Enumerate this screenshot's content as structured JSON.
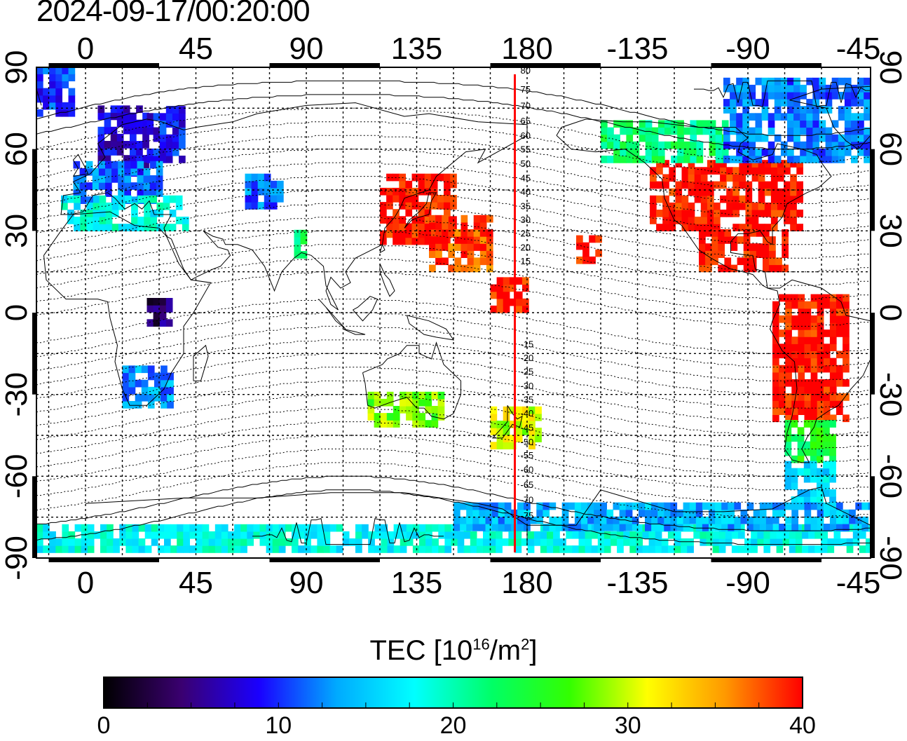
{
  "title": "2024-09-17/00:20:00",
  "map": {
    "lon_ticks": [
      "0",
      "45",
      "90",
      "135",
      "180",
      "-135",
      "-90",
      "-45"
    ],
    "lat_ticks": [
      "90",
      "60",
      "30",
      "0",
      "-30",
      "-60",
      "-90"
    ],
    "lon_range": [
      -20,
      320
    ],
    "lat_range": [
      -90,
      90
    ],
    "grid_step_deg": 15,
    "terminator_line": {
      "lon": 175,
      "color": "#ff0000"
    },
    "magnetic_latitude_labels": [
      "80",
      "75",
      "70",
      "65",
      "60",
      "55",
      "50",
      "45",
      "40",
      "35",
      "30",
      "25",
      "20",
      "15",
      "-15",
      "-20",
      "-25",
      "-30",
      "-35",
      "-40",
      "-45",
      "-50",
      "-55",
      "-60",
      "-65",
      "-70",
      "-75"
    ],
    "colors": {
      "frame": "#000000",
      "grid": "#000000",
      "coastline": "#000000"
    }
  },
  "colorbar": {
    "title_prefix": "TEC  [10",
    "title_sup1": "16",
    "title_mid": "/m",
    "title_sup2": "2",
    "title_suffix": "]",
    "ticks": [
      "0",
      "10",
      "20",
      "30",
      "40"
    ],
    "range": [
      0,
      40
    ],
    "stops": [
      "#000000",
      "#3a0070",
      "#1a00ff",
      "#00aaff",
      "#00ffff",
      "#00ff66",
      "#33ff00",
      "#ffff00",
      "#ff9900",
      "#ff0000"
    ]
  },
  "chart_data": {
    "type": "heatmap",
    "variable": "TEC",
    "value_range": [
      0,
      40
    ],
    "regions": [
      {
        "lon": [
          -20,
          -5
        ],
        "lat": [
          72,
          88
        ],
        "tec": 10
      },
      {
        "lon": [
          5,
          25
        ],
        "lat": [
          50,
          75
        ],
        "tec": 8
      },
      {
        "lon": [
          25,
          40
        ],
        "lat": [
          55,
          75
        ],
        "tec": 9
      },
      {
        "lon": [
          -5,
          30
        ],
        "lat": [
          40,
          55
        ],
        "tec": 12
      },
      {
        "lon": [
          -10,
          40
        ],
        "lat": [
          30,
          42
        ],
        "tec": 18
      },
      {
        "lon": [
          65,
          80
        ],
        "lat": [
          38,
          50
        ],
        "tec": 12
      },
      {
        "lon": [
          85,
          90
        ],
        "lat": [
          20,
          30
        ],
        "tec": 22
      },
      {
        "lon": [
          120,
          150
        ],
        "lat": [
          25,
          50
        ],
        "tec": 40
      },
      {
        "lon": [
          140,
          165
        ],
        "lat": [
          15,
          35
        ],
        "tec": 38
      },
      {
        "lon": [
          165,
          178
        ],
        "lat": [
          0,
          12
        ],
        "tec": 40
      },
      {
        "lon": [
          200,
          210
        ],
        "lat": [
          18,
          28
        ],
        "tec": 40
      },
      {
        "lon": [
          230,
          290
        ],
        "lat": [
          30,
          55
        ],
        "tec": 40
      },
      {
        "lon": [
          210,
          260
        ],
        "lat": [
          55,
          70
        ],
        "tec": 22
      },
      {
        "lon": [
          260,
          320
        ],
        "lat": [
          55,
          85
        ],
        "tec": 12
      },
      {
        "lon": [
          250,
          285
        ],
        "lat": [
          15,
          30
        ],
        "tec": 40
      },
      {
        "lon": [
          280,
          310
        ],
        "lat": [
          -40,
          5
        ],
        "tec": 40
      },
      {
        "lon": [
          285,
          305
        ],
        "lat": [
          -55,
          -40
        ],
        "tec": 24
      },
      {
        "lon": [
          285,
          305
        ],
        "lat": [
          -70,
          -55
        ],
        "tec": 16
      },
      {
        "lon": [
          15,
          35
        ],
        "lat": [
          -35,
          -20
        ],
        "tec": 13
      },
      {
        "lon": [
          25,
          35
        ],
        "lat": [
          -5,
          5
        ],
        "tec": 4
      },
      {
        "lon": [
          165,
          185
        ],
        "lat": [
          -50,
          -35
        ],
        "tec": 30
      },
      {
        "lon": [
          115,
          145
        ],
        "lat": [
          -42,
          -30
        ],
        "tec": 28
      },
      {
        "lon": [
          -20,
          320
        ],
        "lat": [
          -88,
          -78
        ],
        "tec": 18
      },
      {
        "lon": [
          150,
          320
        ],
        "lat": [
          -80,
          -70
        ],
        "tec": 14
      }
    ]
  }
}
